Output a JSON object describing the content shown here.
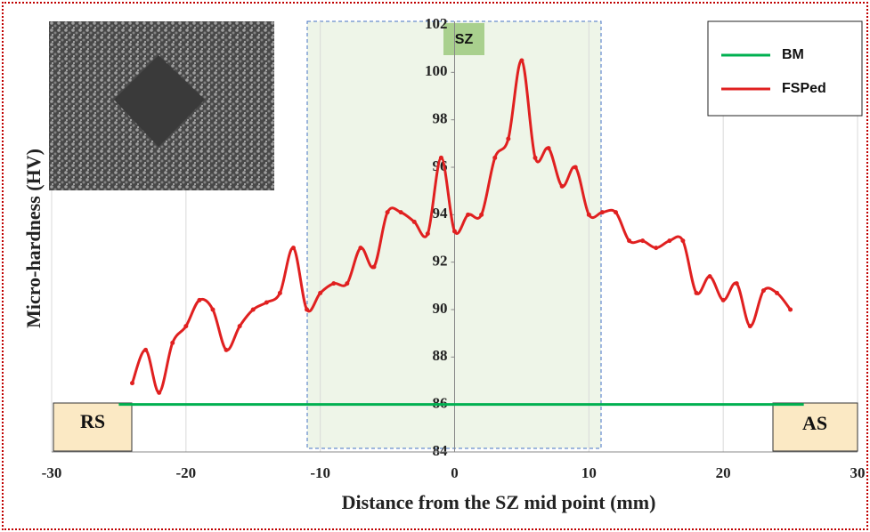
{
  "chart_data": {
    "type": "line",
    "xlabel": "Distance from the SZ mid point (mm)",
    "ylabel": "Micro-hardness (HV)",
    "xlim": [
      -30,
      30
    ],
    "xticks": [
      -30,
      -20,
      -10,
      0,
      10,
      20,
      30
    ],
    "ylim": [
      84,
      102
    ],
    "yticks": [
      84,
      86,
      88,
      90,
      92,
      94,
      96,
      98,
      100,
      102
    ],
    "legend": "upper right",
    "annotations": [
      "SZ",
      "RS",
      "AS"
    ],
    "series": [
      {
        "name": "BM",
        "color": "#00b050",
        "x": [
          -25,
          26
        ],
        "values": [
          86,
          86
        ]
      },
      {
        "name": "FSPed",
        "color": "#e02020",
        "x": [
          -24,
          -23,
          -22,
          -21,
          -20,
          -19,
          -18,
          -17,
          -16,
          -15,
          -14,
          -13,
          -12,
          -11,
          -10,
          -9,
          -8,
          -7,
          -6,
          -5,
          -4,
          -3,
          -2,
          -1,
          0,
          1,
          2,
          3,
          4,
          5,
          6,
          7,
          8,
          9,
          10,
          11,
          12,
          13,
          14,
          15,
          16,
          17,
          18,
          19,
          20,
          21,
          22,
          23,
          24,
          25
        ],
        "values": [
          86.9,
          88.3,
          86.5,
          88.6,
          89.3,
          90.4,
          90.0,
          88.3,
          89.3,
          90.0,
          90.3,
          90.7,
          92.6,
          90.0,
          90.7,
          91.1,
          91.1,
          92.6,
          91.8,
          94.1,
          94.1,
          93.7,
          93.2,
          96.4,
          93.3,
          94.0,
          94.0,
          96.4,
          97.2,
          100.5,
          96.4,
          96.8,
          95.2,
          96.0,
          94.0,
          94.1,
          94.1,
          92.9,
          92.9,
          92.6,
          92.9,
          92.9,
          90.7,
          91.4,
          90.4,
          91.1,
          89.3,
          90.8,
          90.7,
          90.0
        ]
      }
    ]
  }
}
